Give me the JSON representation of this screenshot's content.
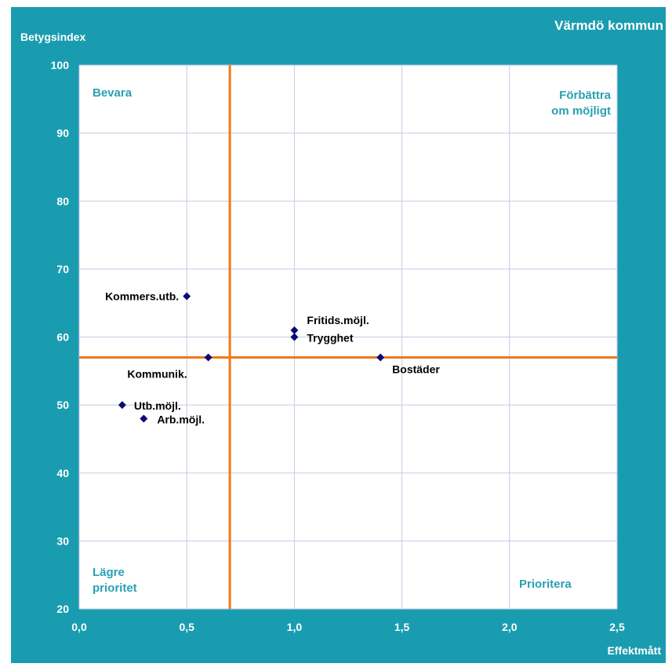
{
  "chart_data": {
    "type": "scatter",
    "title": "Värmdö kommun",
    "xlabel": "Effektmått",
    "ylabel": "Betygsindex",
    "xlim": [
      0,
      2.5
    ],
    "ylim": [
      20,
      100
    ],
    "xticks": [
      "0,0",
      "0,5",
      "1,0",
      "1,5",
      "2,0",
      "2,5"
    ],
    "yticks": [
      "20",
      "30",
      "40",
      "50",
      "60",
      "70",
      "80",
      "90",
      "100"
    ],
    "grid": true,
    "reference_lines": {
      "x": 0.7,
      "y": 57
    },
    "quadrant_labels": {
      "top_left": "Bevara",
      "top_right": [
        "Förbättra",
        "om möjligt"
      ],
      "bottom_left": [
        "Lägre",
        "prioritet"
      ],
      "bottom_right": "Prioritera"
    },
    "points": [
      {
        "label": "Kommers.utb.",
        "x": 0.5,
        "y": 66
      },
      {
        "label": "Fritids.möjl.",
        "x": 1.0,
        "y": 61
      },
      {
        "label": "Trygghet",
        "x": 1.0,
        "y": 60
      },
      {
        "label": "Kommunik.",
        "x": 0.6,
        "y": 57
      },
      {
        "label": "Bostäder",
        "x": 1.4,
        "y": 57
      },
      {
        "label": "Utb.möjl.",
        "x": 0.2,
        "y": 50
      },
      {
        "label": "Arb.möjl.",
        "x": 0.3,
        "y": 48
      }
    ]
  },
  "colors": {
    "frame": "#1a9cb0",
    "plot_background": "#ffffff",
    "grid": "#c9c9e6",
    "reference_line": "#f07a1a",
    "marker": "#0a0a78",
    "quadrant_text": "#2aa0b4",
    "axis_text": "#ffffff",
    "point_label": "#000000"
  }
}
